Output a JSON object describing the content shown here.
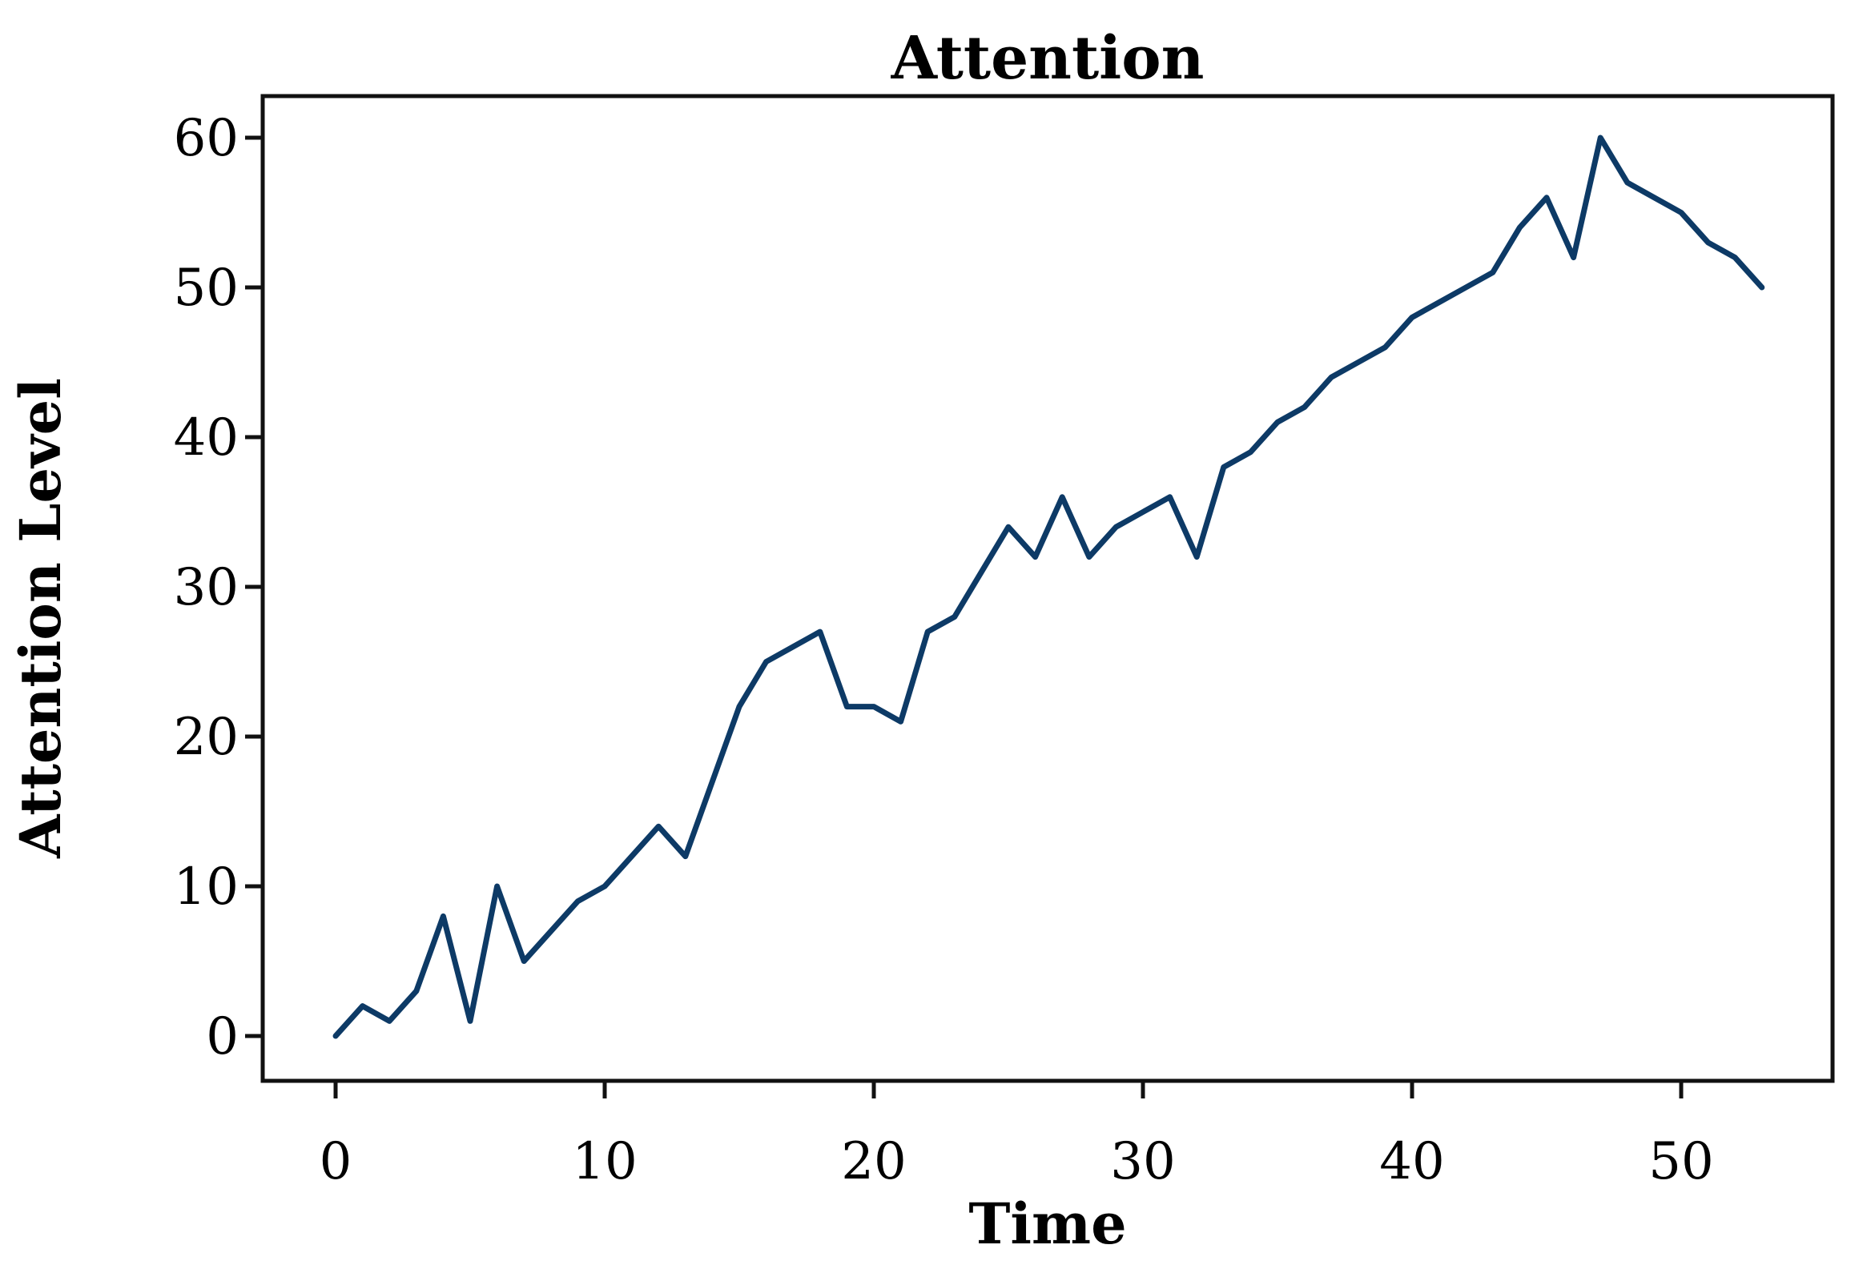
{
  "chart_data": {
    "type": "line",
    "title": "Attention",
    "xlabel": "Time",
    "ylabel": "Attention Level",
    "x": [
      0,
      1,
      2,
      3,
      4,
      5,
      6,
      7,
      8,
      9,
      10,
      11,
      12,
      13,
      14,
      15,
      16,
      17,
      18,
      19,
      20,
      21,
      22,
      23,
      24,
      25,
      26,
      27,
      28,
      29,
      30,
      31,
      32,
      33,
      34,
      35,
      36,
      37,
      38,
      39,
      40,
      41,
      42,
      43,
      44,
      45,
      46,
      47,
      48,
      49,
      50,
      51,
      52,
      53
    ],
    "values": [
      0,
      2,
      1,
      3,
      8,
      1,
      10,
      5,
      7,
      9,
      10,
      12,
      14,
      12,
      17,
      22,
      25,
      26,
      27,
      22,
      22,
      21,
      27,
      28,
      31,
      34,
      32,
      36,
      32,
      34,
      35,
      36,
      32,
      38,
      39,
      41,
      42,
      44,
      45,
      46,
      48,
      49,
      50,
      51,
      54,
      56,
      52,
      60,
      57,
      56,
      55,
      53,
      52,
      50
    ],
    "x_ticks": [
      0,
      10,
      20,
      30,
      40,
      50
    ],
    "y_ticks": [
      0,
      10,
      20,
      30,
      40,
      50,
      60
    ],
    "xlim": [
      -2.7,
      55.7
    ],
    "ylim": [
      -3,
      62.8
    ],
    "grid": false,
    "legend": null,
    "series_name": "Attention",
    "line_color": "#0d3a66",
    "axis_color": "#111111",
    "text_color": "#000000"
  }
}
